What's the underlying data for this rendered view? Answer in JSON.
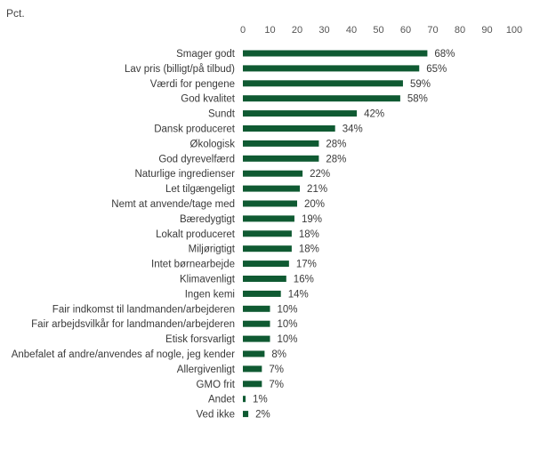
{
  "chart_data": {
    "type": "bar",
    "orientation": "horizontal",
    "unit_label": "Pct.",
    "xlim": [
      0,
      100
    ],
    "xticks": [
      0,
      10,
      20,
      30,
      40,
      50,
      60,
      70,
      80,
      90,
      100
    ],
    "grid": false,
    "legend": "none",
    "bar_color": "#0f5a32",
    "value_suffix": "%",
    "categories": [
      "Smager godt",
      "Lav pris (billigt/på tilbud)",
      "Værdi for pengene",
      "God kvalitet",
      "Sundt",
      "Dansk produceret",
      "Økologisk",
      "God dyrevelfærd",
      "Naturlige ingredienser",
      "Let tilgængeligt",
      "Nemt at anvende/tage med",
      "Bæredygtigt",
      "Lokalt produceret",
      "Miljørigtigt",
      "Intet børnearbejde",
      "Klimavenligt",
      "Ingen kemi",
      "Fair indkomst til landmanden/arbejderen",
      "Fair arbejdsvilkår for landmanden/arbejderen",
      "Etisk forsvarligt",
      "Anbefalet af andre/anvendes af nogle, jeg kender",
      "Allergivenligt",
      "GMO frit",
      "Andet",
      "Ved ikke"
    ],
    "values": [
      68,
      65,
      59,
      58,
      42,
      34,
      28,
      28,
      22,
      21,
      20,
      19,
      18,
      18,
      17,
      16,
      14,
      10,
      10,
      10,
      8,
      7,
      7,
      1,
      2
    ]
  }
}
